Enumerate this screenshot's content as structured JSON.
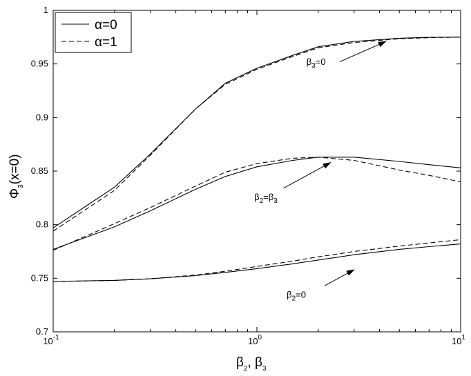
{
  "chart_data": {
    "type": "line",
    "title": "",
    "xlabel": {
      "parts": [
        "β",
        "2",
        ", β",
        "3"
      ]
    },
    "ylabel": {
      "parts": [
        "Φ",
        "3",
        "(x=0)"
      ]
    },
    "xscale": "log",
    "xlim": [
      0.1,
      10
    ],
    "ylim": [
      0.7,
      1.0
    ],
    "x_ticks": [
      {
        "value": 0.1,
        "base": "10",
        "exp": "-1"
      },
      {
        "value": 1,
        "base": "10",
        "exp": "0"
      },
      {
        "value": 10,
        "base": "10",
        "exp": "1"
      }
    ],
    "y_ticks": [
      {
        "value": 0.7,
        "label": "0.7"
      },
      {
        "value": 0.75,
        "label": "0.75"
      },
      {
        "value": 0.8,
        "label": "0.8"
      },
      {
        "value": 0.85,
        "label": "0.85"
      },
      {
        "value": 0.9,
        "label": "0.9"
      },
      {
        "value": 0.95,
        "label": "0.95"
      },
      {
        "value": 1.0,
        "label": "1"
      }
    ],
    "grid": false,
    "legend": {
      "position": "top-left",
      "entries": [
        {
          "label": "α=0",
          "style": "solid"
        },
        {
          "label": "α=1",
          "style": "dashed"
        }
      ]
    },
    "series": [
      {
        "group": "β3=0",
        "style": "solid",
        "x": [
          0.1,
          0.2,
          0.3,
          0.5,
          0.7,
          1.0,
          1.5,
          2.0,
          3.0,
          5.0,
          7.0,
          10.0
        ],
        "y": [
          0.797,
          0.835,
          0.866,
          0.908,
          0.932,
          0.946,
          0.958,
          0.966,
          0.971,
          0.974,
          0.9748,
          0.975
        ]
      },
      {
        "group": "β3=0",
        "style": "dashed",
        "x": [
          0.1,
          0.2,
          0.3,
          0.5,
          0.7,
          1.0,
          1.5,
          2.0,
          3.0,
          5.0,
          7.0,
          10.0
        ],
        "y": [
          0.794,
          0.832,
          0.865,
          0.908,
          0.931,
          0.945,
          0.957,
          0.965,
          0.97,
          0.9735,
          0.9745,
          0.975
        ]
      },
      {
        "group": "β2=β3",
        "style": "solid",
        "x": [
          0.1,
          0.2,
          0.3,
          0.5,
          0.7,
          1.0,
          1.5,
          2.0,
          3.0,
          5.0,
          7.0,
          10.0
        ],
        "y": [
          0.777,
          0.798,
          0.813,
          0.833,
          0.845,
          0.854,
          0.86,
          0.863,
          0.863,
          0.859,
          0.856,
          0.853
        ]
      },
      {
        "group": "β2=β3",
        "style": "dashed",
        "x": [
          0.1,
          0.2,
          0.3,
          0.5,
          0.7,
          1.0,
          1.5,
          2.0,
          3.0,
          5.0,
          7.0,
          10.0
        ],
        "y": [
          0.776,
          0.801,
          0.816,
          0.836,
          0.849,
          0.857,
          0.862,
          0.863,
          0.86,
          0.851,
          0.846,
          0.84
        ]
      },
      {
        "group": "β2=0",
        "style": "solid",
        "x": [
          0.1,
          0.2,
          0.3,
          0.5,
          0.7,
          1.0,
          1.5,
          2.0,
          3.0,
          5.0,
          7.0,
          10.0
        ],
        "y": [
          0.747,
          0.748,
          0.7495,
          0.7525,
          0.7555,
          0.759,
          0.7635,
          0.767,
          0.772,
          0.777,
          0.7795,
          0.782
        ]
      },
      {
        "group": "β2=0",
        "style": "dashed",
        "x": [
          0.1,
          0.2,
          0.3,
          0.5,
          0.7,
          1.0,
          1.5,
          2.0,
          3.0,
          5.0,
          7.0,
          10.0
        ],
        "y": [
          0.747,
          0.748,
          0.7495,
          0.753,
          0.7565,
          0.761,
          0.766,
          0.77,
          0.775,
          0.78,
          0.783,
          0.786
        ]
      }
    ],
    "annotations": [
      {
        "label_parts": [
          "β",
          "3",
          "=0"
        ],
        "label_at": [
          1.75,
          0.949
        ],
        "arrow_from": [
          2.55,
          0.952
        ],
        "arrow_to": [
          4.3,
          0.971
        ]
      },
      {
        "label_parts": [
          "β",
          "2",
          "=β",
          "3"
        ],
        "label_at": [
          0.97,
          0.823
        ],
        "arrow_from": [
          1.35,
          0.834
        ],
        "arrow_to": [
          2.3,
          0.858
        ]
      },
      {
        "label_parts": [
          "β",
          "2",
          "=0"
        ],
        "label_at": [
          1.4,
          0.732
        ],
        "arrow_from": [
          2.15,
          0.743
        ],
        "arrow_to": [
          3.0,
          0.758
        ]
      }
    ]
  }
}
